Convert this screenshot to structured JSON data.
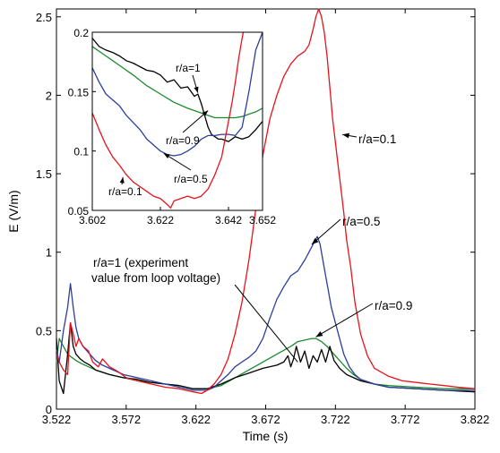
{
  "chart_data": [
    {
      "type": "line",
      "xlabel": "Time (s)",
      "ylabel": "E (V/m)",
      "xlim": [
        3.522,
        3.822
      ],
      "ylim": [
        0,
        2.55
      ],
      "xticks": [
        "3.522",
        "3.572",
        "3.622",
        "3.672",
        "3.722",
        "3.772",
        "3.822"
      ],
      "yticks": [
        "0",
        "0.5",
        "1",
        "1.5",
        "2",
        "2.5"
      ],
      "colors": {
        "r_a_0_1": "#e8121c",
        "r_a_0_5": "#2c3e9c",
        "r_a_0_9": "#1a8a2e",
        "r_a_1": "#000000"
      },
      "annotations": [
        {
          "text": "r/a=0.1",
          "target": [
            3.727,
            1.75
          ]
        },
        {
          "text": "r/a=0.5",
          "target": [
            3.705,
            1.05
          ]
        },
        {
          "text": "r/a=0.9",
          "target": [
            3.708,
            0.46
          ]
        },
        {
          "text_lines": [
            "r/a=1 (experiment",
            "value from loop voltage)"
          ],
          "target": [
            3.695,
            0.3
          ]
        }
      ],
      "series": [
        {
          "key": "r_a_0_1",
          "x": [
            3.522,
            3.524,
            3.527,
            3.53,
            3.532,
            3.534,
            3.536,
            3.538,
            3.541,
            3.545,
            3.548,
            3.552,
            3.555,
            3.56,
            3.566,
            3.572,
            3.58,
            3.59,
            3.6,
            3.61,
            3.62,
            3.626,
            3.63,
            3.635,
            3.64,
            3.645,
            3.65,
            3.655,
            3.66,
            3.665,
            3.67,
            3.675,
            3.68,
            3.685,
            3.69,
            3.695,
            3.7,
            3.703,
            3.706,
            3.708,
            3.71,
            3.712,
            3.714,
            3.716,
            3.718,
            3.72,
            3.722,
            3.724,
            3.726,
            3.728,
            3.73,
            3.733,
            3.736,
            3.74,
            3.745,
            3.75,
            3.76,
            3.77,
            3.78,
            3.79,
            3.8,
            3.81,
            3.822
          ],
          "y": [
            0.35,
            0.3,
            0.25,
            0.22,
            0.55,
            0.48,
            0.4,
            0.45,
            0.4,
            0.37,
            0.3,
            0.27,
            0.32,
            0.27,
            0.24,
            0.2,
            0.18,
            0.16,
            0.14,
            0.13,
            0.11,
            0.1,
            0.12,
            0.16,
            0.22,
            0.32,
            0.48,
            0.68,
            0.95,
            1.28,
            1.62,
            1.85,
            2.0,
            2.12,
            2.2,
            2.25,
            2.28,
            2.32,
            2.42,
            2.5,
            2.55,
            2.5,
            2.4,
            2.25,
            2.05,
            1.85,
            1.7,
            1.55,
            1.4,
            1.25,
            1.08,
            0.9,
            0.68,
            0.48,
            0.34,
            0.26,
            0.21,
            0.18,
            0.17,
            0.16,
            0.15,
            0.14,
            0.13
          ]
        },
        {
          "key": "r_a_0_5",
          "x": [
            3.522,
            3.524,
            3.527,
            3.53,
            3.532,
            3.534,
            3.536,
            3.538,
            3.541,
            3.545,
            3.55,
            3.555,
            3.56,
            3.57,
            3.58,
            3.59,
            3.6,
            3.61,
            3.62,
            3.63,
            3.635,
            3.64,
            3.645,
            3.65,
            3.655,
            3.66,
            3.665,
            3.67,
            3.675,
            3.68,
            3.685,
            3.69,
            3.695,
            3.7,
            3.703,
            3.706,
            3.709,
            3.711,
            3.713,
            3.715,
            3.717,
            3.719,
            3.722,
            3.725,
            3.728,
            3.732,
            3.736,
            3.74,
            3.75,
            3.76,
            3.78,
            3.8,
            3.822
          ],
          "y": [
            0.38,
            0.3,
            0.5,
            0.65,
            0.8,
            0.65,
            0.52,
            0.45,
            0.4,
            0.36,
            0.31,
            0.28,
            0.26,
            0.22,
            0.2,
            0.18,
            0.16,
            0.14,
            0.12,
            0.12,
            0.14,
            0.18,
            0.22,
            0.27,
            0.3,
            0.33,
            0.37,
            0.45,
            0.58,
            0.7,
            0.78,
            0.85,
            0.88,
            0.95,
            1.0,
            1.05,
            1.1,
            1.05,
            0.95,
            0.85,
            0.75,
            0.65,
            0.55,
            0.45,
            0.35,
            0.27,
            0.22,
            0.19,
            0.16,
            0.14,
            0.13,
            0.12,
            0.12
          ]
        },
        {
          "key": "r_a_0_9",
          "x": [
            3.522,
            3.524,
            3.527,
            3.53,
            3.533,
            3.536,
            3.54,
            3.545,
            3.55,
            3.56,
            3.57,
            3.58,
            3.59,
            3.6,
            3.61,
            3.62,
            3.63,
            3.64,
            3.65,
            3.66,
            3.67,
            3.68,
            3.69,
            3.695,
            3.7,
            3.705,
            3.708,
            3.712,
            3.716,
            3.72,
            3.725,
            3.73,
            3.735,
            3.74,
            3.75,
            3.76,
            3.78,
            3.8,
            3.822
          ],
          "y": [
            0.3,
            0.45,
            0.4,
            0.35,
            0.33,
            0.31,
            0.29,
            0.27,
            0.25,
            0.22,
            0.2,
            0.18,
            0.17,
            0.16,
            0.15,
            0.13,
            0.13,
            0.15,
            0.2,
            0.25,
            0.3,
            0.35,
            0.4,
            0.43,
            0.44,
            0.45,
            0.45,
            0.43,
            0.4,
            0.36,
            0.31,
            0.26,
            0.22,
            0.19,
            0.16,
            0.15,
            0.14,
            0.13,
            0.13
          ]
        },
        {
          "key": "r_a_1",
          "x": [
            3.522,
            3.524,
            3.527,
            3.53,
            3.532,
            3.534,
            3.536,
            3.539,
            3.542,
            3.546,
            3.55,
            3.56,
            3.57,
            3.58,
            3.59,
            3.6,
            3.61,
            3.62,
            3.63,
            3.64,
            3.65,
            3.66,
            3.67,
            3.68,
            3.685,
            3.688,
            3.69,
            3.692,
            3.694,
            3.697,
            3.7,
            3.703,
            3.706,
            3.709,
            3.712,
            3.715,
            3.718,
            3.721,
            3.725,
            3.73,
            3.74,
            3.75,
            3.76,
            3.78,
            3.8,
            3.822
          ],
          "y": [
            0.45,
            0.18,
            0.1,
            0.35,
            0.55,
            0.4,
            0.35,
            0.32,
            0.3,
            0.28,
            0.25,
            0.22,
            0.2,
            0.19,
            0.17,
            0.16,
            0.15,
            0.13,
            0.13,
            0.16,
            0.2,
            0.23,
            0.26,
            0.28,
            0.3,
            0.34,
            0.27,
            0.32,
            0.4,
            0.3,
            0.37,
            0.26,
            0.34,
            0.3,
            0.38,
            0.3,
            0.4,
            0.31,
            0.26,
            0.22,
            0.18,
            0.16,
            0.14,
            0.13,
            0.12,
            0.11
          ]
        }
      ]
    },
    {
      "type": "line",
      "inset": true,
      "xlim": [
        3.602,
        3.652
      ],
      "ylim": [
        0.05,
        0.2
      ],
      "xticks": [
        "3.602",
        "3.622",
        "3.642",
        "3.652"
      ],
      "yticks": [
        "0.05",
        "0.1",
        "0.15",
        "0.2"
      ],
      "annotations": [
        {
          "text": "r/a=1",
          "target": [
            3.633,
            0.149
          ]
        },
        {
          "text": "r/a=0.9",
          "target": [
            3.636,
            0.134
          ]
        },
        {
          "text": "r/a=0.5",
          "target": [
            3.623,
            0.098
          ]
        },
        {
          "text": "r/a=0.1",
          "target": [
            3.611,
            0.078
          ]
        }
      ],
      "series": [
        {
          "key": "r_a_1",
          "x": [
            3.602,
            3.604,
            3.606,
            3.608,
            3.61,
            3.612,
            3.614,
            3.616,
            3.618,
            3.62,
            3.622,
            3.624,
            3.626,
            3.628,
            3.63,
            3.631,
            3.632,
            3.633,
            3.634,
            3.635,
            3.636,
            3.637,
            3.638,
            3.639,
            3.64,
            3.642,
            3.644,
            3.646,
            3.648,
            3.65,
            3.652
          ],
          "y": [
            0.195,
            0.188,
            0.185,
            0.183,
            0.18,
            0.176,
            0.174,
            0.171,
            0.168,
            0.167,
            0.164,
            0.158,
            0.16,
            0.153,
            0.154,
            0.15,
            0.146,
            0.148,
            0.14,
            0.13,
            0.12,
            0.114,
            0.112,
            0.11,
            0.11,
            0.108,
            0.112,
            0.11,
            0.112,
            0.118,
            0.125
          ]
        },
        {
          "key": "r_a_0_9",
          "x": [
            3.602,
            3.606,
            3.61,
            3.614,
            3.618,
            3.622,
            3.626,
            3.63,
            3.634,
            3.636,
            3.638,
            3.64,
            3.642,
            3.644,
            3.646,
            3.648,
            3.65,
            3.652
          ],
          "y": [
            0.188,
            0.18,
            0.172,
            0.164,
            0.155,
            0.148,
            0.141,
            0.136,
            0.132,
            0.13,
            0.128,
            0.128,
            0.128,
            0.128,
            0.129,
            0.131,
            0.133,
            0.136
          ]
        },
        {
          "key": "r_a_0_5",
          "x": [
            3.602,
            3.604,
            3.606,
            3.608,
            3.61,
            3.612,
            3.614,
            3.616,
            3.618,
            3.62,
            3.622,
            3.624,
            3.626,
            3.628,
            3.63,
            3.632,
            3.634,
            3.636,
            3.638,
            3.64,
            3.642,
            3.644,
            3.646,
            3.648,
            3.65,
            3.652
          ],
          "y": [
            0.17,
            0.158,
            0.148,
            0.143,
            0.138,
            0.13,
            0.124,
            0.118,
            0.11,
            0.105,
            0.1,
            0.097,
            0.096,
            0.097,
            0.1,
            0.104,
            0.11,
            0.113,
            0.113,
            0.114,
            0.114,
            0.113,
            0.12,
            0.15,
            0.185,
            0.2
          ]
        },
        {
          "key": "r_a_0_1",
          "x": [
            3.602,
            3.604,
            3.606,
            3.608,
            3.61,
            3.612,
            3.614,
            3.616,
            3.618,
            3.62,
            3.622,
            3.624,
            3.625,
            3.626,
            3.628,
            3.63,
            3.632,
            3.634,
            3.636,
            3.638,
            3.64,
            3.641,
            3.642,
            3.643,
            3.644,
            3.645,
            3.646,
            3.647,
            3.648
          ],
          "y": [
            0.132,
            0.118,
            0.105,
            0.095,
            0.088,
            0.08,
            0.074,
            0.07,
            0.066,
            0.062,
            0.06,
            0.055,
            0.052,
            0.058,
            0.06,
            0.062,
            0.06,
            0.062,
            0.068,
            0.08,
            0.095,
            0.11,
            0.125,
            0.14,
            0.158,
            0.178,
            0.195,
            0.21,
            0.22
          ]
        }
      ]
    }
  ]
}
